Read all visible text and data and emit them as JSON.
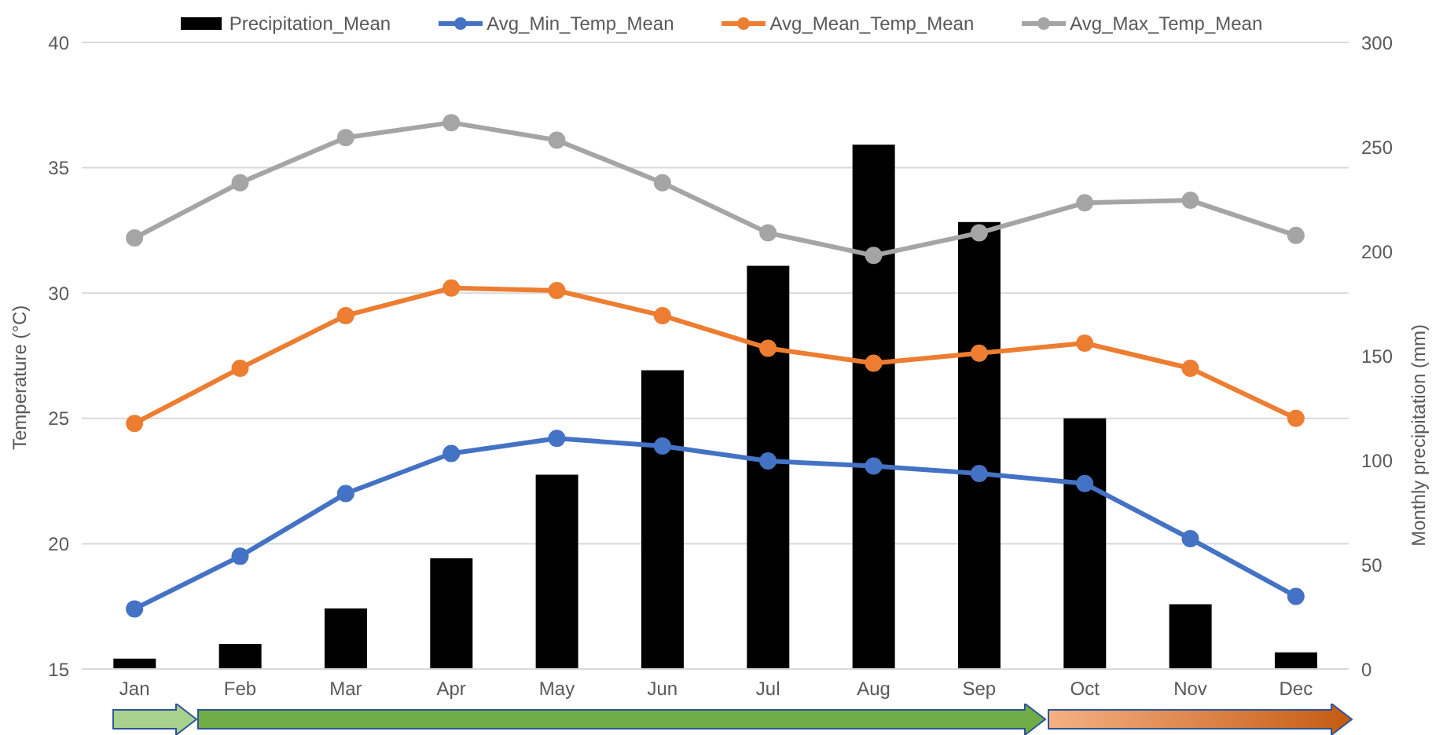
{
  "chart_data": {
    "type": "line",
    "ylabel": "Temperature (°C)",
    "y2label": "Monthly precipitation (mm)",
    "categories": [
      "Jan",
      "Feb",
      "Mar",
      "Apr",
      "May",
      "Jun",
      "Jul",
      "Aug",
      "Sep",
      "Oct",
      "Nov",
      "Dec"
    ],
    "series": [
      {
        "name": "Precipitation_Mean",
        "type": "bar",
        "axis": "y2",
        "color": "#000000",
        "values": [
          5,
          12,
          29,
          53,
          93,
          143,
          193,
          251,
          214,
          120,
          31,
          8
        ]
      },
      {
        "name": "Avg_Min_Temp_Mean",
        "color": "#4472c4",
        "values": [
          17.4,
          19.5,
          22.0,
          23.6,
          24.2,
          23.9,
          23.3,
          23.1,
          22.8,
          22.4,
          20.2,
          17.9
        ]
      },
      {
        "name": "Avg_Mean_Temp_Mean",
        "color": "#ed7d31",
        "values": [
          24.8,
          27.0,
          29.1,
          30.2,
          30.1,
          29.1,
          27.8,
          27.2,
          27.6,
          28.0,
          27.0,
          25.0
        ]
      },
      {
        "name": "Avg_Max_Temp_Mean",
        "color": "#a5a5a5",
        "values": [
          32.2,
          34.4,
          36.2,
          36.8,
          36.1,
          34.4,
          32.4,
          31.5,
          32.4,
          33.6,
          33.7,
          32.3
        ]
      }
    ],
    "ylim": [
      15,
      40
    ],
    "yticks": [
      15,
      20,
      25,
      30,
      35,
      40
    ],
    "y2lim": [
      0,
      300
    ],
    "y2ticks": [
      0,
      50,
      100,
      150,
      200,
      250,
      300
    ],
    "grid": "y",
    "legend": "top",
    "marker": "circle"
  }
}
